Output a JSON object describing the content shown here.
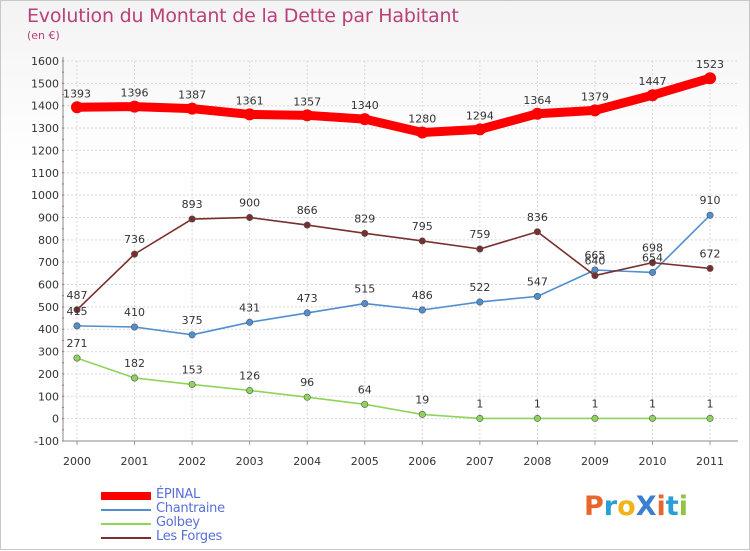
{
  "chart_data": {
    "type": "line",
    "title": "Evolution du Montant de la Dette par Habitant",
    "subtitle": "(en €)",
    "xlabel": "",
    "ylabel": "",
    "ylim": [
      -100,
      1600
    ],
    "ytick_step": 100,
    "grid": true,
    "legend_position": "bottom-left",
    "categories": [
      "2000",
      "2001",
      "2002",
      "2003",
      "2004",
      "2005",
      "2006",
      "2007",
      "2008",
      "2009",
      "2010",
      "2011"
    ],
    "series": [
      {
        "name": "ÉPINAL",
        "color": "#ff0000",
        "values": [
          1393,
          1396,
          1387,
          1361,
          1357,
          1340,
          1280,
          1294,
          1364,
          1379,
          1447,
          1523
        ]
      },
      {
        "name": "Chantraine",
        "color": "#4f8fd0",
        "values": [
          415,
          410,
          375,
          431,
          473,
          515,
          486,
          522,
          547,
          665,
          654,
          910
        ]
      },
      {
        "name": "Golbey",
        "color": "#8fd45a",
        "values": [
          271,
          182,
          153,
          126,
          96,
          64,
          19,
          1,
          1,
          1,
          1,
          1
        ]
      },
      {
        "name": "Les Forges",
        "color": "#7b2e2e",
        "values": [
          487,
          736,
          893,
          900,
          866,
          829,
          795,
          759,
          836,
          640,
          698,
          672
        ]
      }
    ]
  },
  "logo": {
    "text": "Proxiti",
    "letters": [
      {
        "ch": "P",
        "color": "#e8662c"
      },
      {
        "ch": "r",
        "color": "#2a9fd6"
      },
      {
        "ch": "o",
        "color": "#f0b418"
      },
      {
        "ch": "X",
        "color": "#3a7fd0"
      },
      {
        "ch": "i",
        "color": "#e8662c"
      },
      {
        "ch": "t",
        "color": "#2a9fd6"
      },
      {
        "ch": "i",
        "color": "#8dc63f"
      }
    ]
  }
}
